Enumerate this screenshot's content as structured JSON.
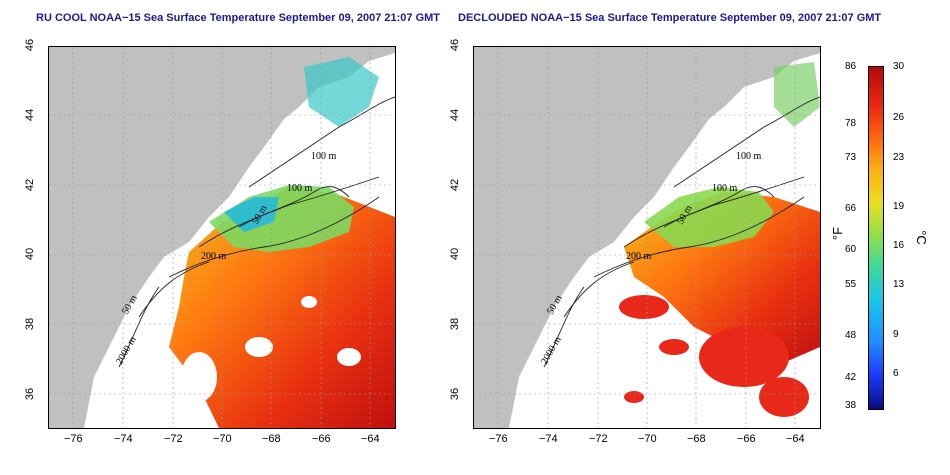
{
  "left_panel": {
    "title": "RU COOL NOAA−15 Sea Surface Temperature September 09, 2007 21:07 GMT",
    "contour_labels": [
      "100 m",
      "100 m",
      "50 m",
      "200 m",
      "50 m",
      "2000 m"
    ]
  },
  "right_panel": {
    "title": "DECLOUDED NOAA−15 Sea Surface Temperature September 09, 2007 21:07 GMT",
    "contour_labels": [
      "100 m",
      "100 m",
      "50 m",
      "200 m",
      "50 m",
      "2000 m"
    ]
  },
  "x_ticks": [
    "−76",
    "−74",
    "−72",
    "−70",
    "−68",
    "−66",
    "−64"
  ],
  "y_ticks": [
    "46",
    "44",
    "42",
    "40",
    "38",
    "36"
  ],
  "colorbar": {
    "f_unit": "°F",
    "c_unit": "°C",
    "f_ticks": [
      "86",
      "78",
      "73",
      "66",
      "60",
      "55",
      "48",
      "42",
      "38"
    ],
    "c_ticks": [
      "30",
      "26",
      "23",
      "19",
      "16",
      "13",
      "9",
      "6"
    ]
  },
  "colors": {
    "land": "#c0c0c0",
    "ocean_cloud": "#ffffff",
    "title": "#1a1a99",
    "sst_cold": "#0a0a80",
    "sst_warm": "#b40a0a"
  }
}
